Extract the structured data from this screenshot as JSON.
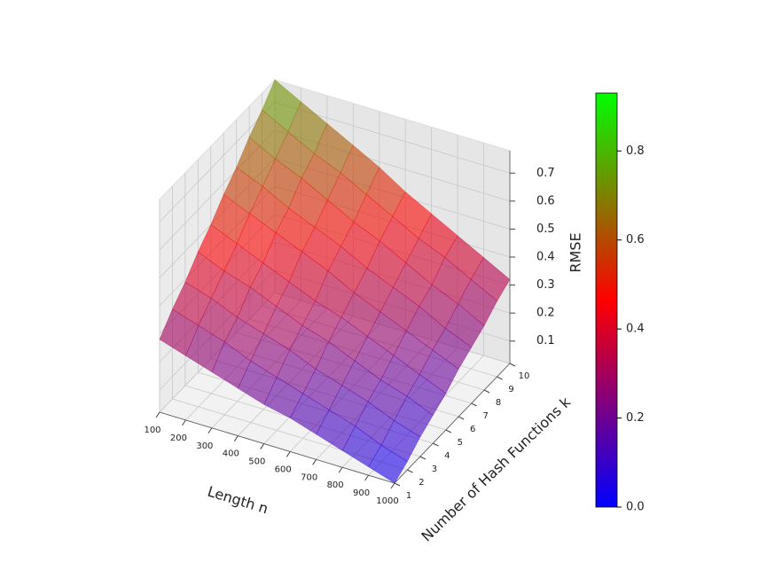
{
  "chart_data": {
    "type": "surface",
    "x": [
      100,
      200,
      300,
      400,
      500,
      600,
      700,
      800,
      900,
      1000
    ],
    "y": [
      1,
      2,
      3,
      4,
      5,
      6,
      7,
      8,
      9,
      10
    ],
    "z": [
      [
        0.28,
        0.34,
        0.39,
        0.45,
        0.5,
        0.56,
        0.61,
        0.67,
        0.72,
        0.78
      ],
      [
        0.25,
        0.31,
        0.36,
        0.41,
        0.46,
        0.52,
        0.57,
        0.62,
        0.67,
        0.73
      ],
      [
        0.22,
        0.28,
        0.32,
        0.38,
        0.42,
        0.48,
        0.52,
        0.58,
        0.62,
        0.68
      ],
      [
        0.19,
        0.24,
        0.29,
        0.34,
        0.38,
        0.44,
        0.48,
        0.53,
        0.58,
        0.63
      ],
      [
        0.16,
        0.21,
        0.26,
        0.3,
        0.34,
        0.4,
        0.44,
        0.48,
        0.53,
        0.58
      ],
      [
        0.14,
        0.18,
        0.22,
        0.27,
        0.31,
        0.35,
        0.39,
        0.44,
        0.48,
        0.52
      ],
      [
        0.11,
        0.15,
        0.19,
        0.23,
        0.27,
        0.31,
        0.35,
        0.39,
        0.43,
        0.47
      ],
      [
        0.08,
        0.12,
        0.16,
        0.19,
        0.23,
        0.27,
        0.31,
        0.34,
        0.39,
        0.42
      ],
      [
        0.05,
        0.08,
        0.12,
        0.16,
        0.19,
        0.23,
        0.26,
        0.3,
        0.34,
        0.37
      ],
      [
        0.02,
        0.05,
        0.09,
        0.12,
        0.15,
        0.19,
        0.22,
        0.25,
        0.29,
        0.32
      ]
    ],
    "xlabel": "Length n",
    "ylabel": "Number of Hash Functions k",
    "zlabel": "RMSE",
    "xlim": [
      100,
      1000
    ],
    "ylim": [
      1,
      10
    ],
    "zlim": [
      0.02,
      0.78
    ],
    "xticks": [
      100,
      200,
      300,
      400,
      500,
      600,
      700,
      800,
      900,
      1000
    ],
    "yticks": [
      1,
      2,
      3,
      4,
      5,
      6,
      7,
      8,
      9,
      10
    ],
    "zticks": [
      0.1,
      0.2,
      0.3,
      0.4,
      0.5,
      0.6,
      0.7
    ],
    "colormap": [
      "#0000ff",
      "#ff0000",
      "#00ff00"
    ],
    "clim": [
      0,
      0.93
    ],
    "colorbar_ticks": [
      {
        "value": 0,
        "label": "0.0"
      },
      0.2,
      0.4,
      0.6,
      0.8
    ],
    "alpha": 0.6
  }
}
